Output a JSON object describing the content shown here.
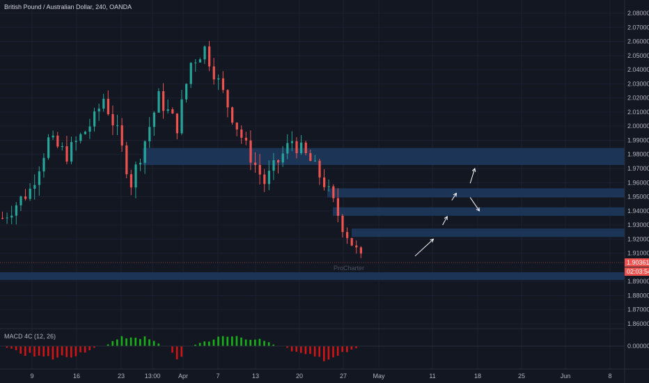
{
  "header": {
    "title": "British Pound / Australian Dollar, 240, OANDA"
  },
  "price_axis": {
    "labels": [
      "2.08000",
      "2.07000",
      "2.06000",
      "2.05000",
      "2.04000",
      "2.03000",
      "2.02000",
      "2.01000",
      "2.00000",
      "1.99000",
      "1.98000",
      "1.97000",
      "1.96000",
      "1.95000",
      "1.94000",
      "1.93000",
      "1.92000",
      "1.91000",
      "1.89000",
      "1.88000",
      "1.87000",
      "1.86000"
    ],
    "current_price": "1.90361",
    "countdown": "02:03:54"
  },
  "time_axis": {
    "labels": [
      "9",
      "16",
      "23",
      "13:00",
      "Apr",
      "7",
      "13",
      "20",
      "27",
      "May",
      "11",
      "18",
      "25",
      "Jun",
      "8"
    ]
  },
  "watermark": "ProCharter",
  "indicator": {
    "label": "MACD 4C (12, 26)",
    "zero_label": "0.00000"
  },
  "colors": {
    "background": "#131722",
    "up": "#26a69a",
    "down": "#ef5350",
    "zone": "#1e3a5f",
    "macd_up": "#19b319",
    "macd_down": "#d11414"
  },
  "chart_data": {
    "type": "candlestick",
    "symbol": "GBPAUD",
    "timeframe": "240",
    "y_range": [
      1.855,
      2.085
    ],
    "close_path": [
      {
        "t": 0,
        "p": 1.935
      },
      {
        "t": 6,
        "p": 1.955
      },
      {
        "t": 10,
        "p": 1.99
      },
      {
        "t": 14,
        "p": 1.98
      },
      {
        "t": 20,
        "p": 2.005
      },
      {
        "t": 22,
        "p": 2.02
      },
      {
        "t": 25,
        "p": 1.995
      },
      {
        "t": 28,
        "p": 1.96
      },
      {
        "t": 31,
        "p": 1.99
      },
      {
        "t": 34,
        "p": 2.02
      },
      {
        "t": 38,
        "p": 2.0
      },
      {
        "t": 41,
        "p": 2.045
      },
      {
        "t": 44,
        "p": 2.055
      },
      {
        "t": 49,
        "p": 2.015
      },
      {
        "t": 53,
        "p": 1.985
      },
      {
        "t": 57,
        "p": 1.96
      },
      {
        "t": 60,
        "p": 1.975
      },
      {
        "t": 63,
        "p": 1.99
      },
      {
        "t": 67,
        "p": 1.975
      },
      {
        "t": 70,
        "p": 1.96
      },
      {
        "t": 74,
        "p": 1.93
      },
      {
        "t": 78,
        "p": 1.905
      }
    ],
    "n_candles": 79,
    "zones": [
      {
        "from": 1.9725,
        "to": 1.9845
      },
      {
        "from": 1.9495,
        "to": 1.956
      },
      {
        "from": 1.9365,
        "to": 1.9425
      },
      {
        "from": 1.9215,
        "to": 1.9275
      },
      {
        "from": 1.891,
        "to": 1.8965
      }
    ],
    "arrows": [
      {
        "from_t": 90,
        "from_p": 1.908,
        "to_t": 94,
        "to_p": 1.92
      },
      {
        "from_t": 96,
        "from_p": 1.93,
        "to_t": 97,
        "to_p": 1.936
      },
      {
        "from_t": 98,
        "from_p": 1.9475,
        "to_t": 99,
        "to_p": 1.9525
      },
      {
        "from_t": 102,
        "from_p": 1.9495,
        "to_t": 104,
        "to_p": 1.94
      },
      {
        "from_t": 102,
        "from_p": 1.9595,
        "to_t": 103,
        "to_p": 1.97
      }
    ],
    "macd_segments": [
      {
        "from": 0,
        "to": 21,
        "sign": "down"
      },
      {
        "from": 22,
        "to": 35,
        "sign": "up"
      },
      {
        "from": 36,
        "to": 40,
        "sign": "down"
      },
      {
        "from": 41,
        "to": 60,
        "sign": "up"
      },
      {
        "from": 61,
        "to": 78,
        "sign": "down"
      }
    ]
  }
}
